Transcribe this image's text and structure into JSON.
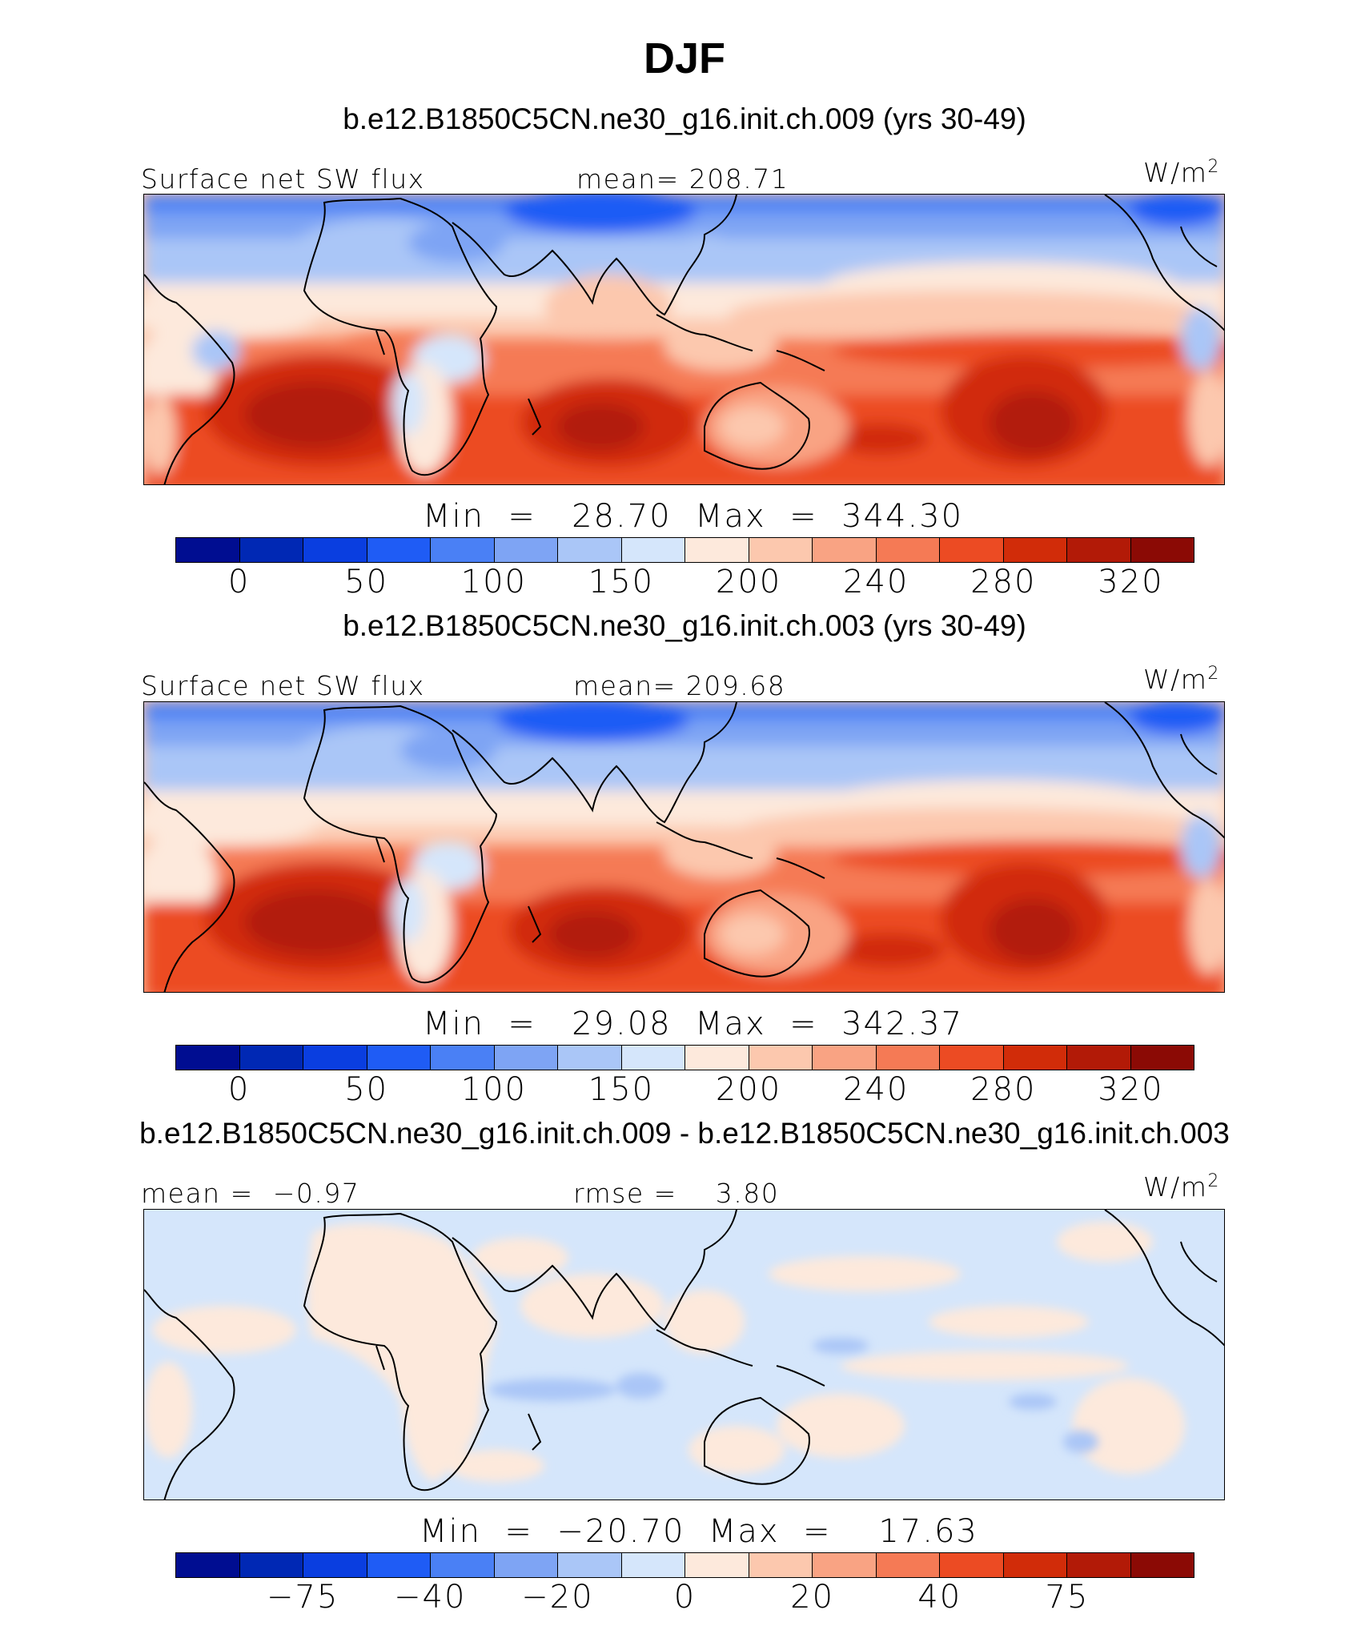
{
  "chart_data": [
    {
      "type": "heatmap",
      "title": "DJF",
      "subtitle": "b.e12.B1850C5CN.ne30_g16.init.ch.009 (yrs 30-49)",
      "variable": "Surface net SW flux",
      "mean_label": "mean=",
      "mean": "208.71",
      "units": "W/m",
      "units_exp": "2",
      "min_label": "Min",
      "min": "28.70",
      "max_label": "Max",
      "max": "344.30",
      "colorbar_ticks": [
        "0",
        "50",
        "100",
        "150",
        "200",
        "240",
        "280",
        "320"
      ],
      "colorbar_levels": [
        0,
        25,
        50,
        75,
        100,
        125,
        150,
        175,
        200,
        220,
        240,
        260,
        280,
        300,
        320
      ],
      "colors": [
        "#000d91",
        "#0028b4",
        "#0a3ee0",
        "#1f5cf5",
        "#4a80f5",
        "#7ea4f4",
        "#aac6f7",
        "#d5e6fb",
        "#fde9dc",
        "#fcc8ae",
        "#f9a383",
        "#f57a55",
        "#ec4b23",
        "#d12c09",
        "#b21a07",
        "#8b0a05"
      ]
    },
    {
      "type": "heatmap",
      "subtitle": "b.e12.B1850C5CN.ne30_g16.init.ch.003 (yrs 30-49)",
      "variable": "Surface net SW flux",
      "mean_label": "mean=",
      "mean": "209.68",
      "units": "W/m",
      "units_exp": "2",
      "min_label": "Min",
      "min": "29.08",
      "max_label": "Max",
      "max": "342.37",
      "colorbar_ticks": [
        "0",
        "50",
        "100",
        "150",
        "200",
        "240",
        "280",
        "320"
      ]
    },
    {
      "type": "heatmap",
      "subtitle": "b.e12.B1850C5CN.ne30_g16.init.ch.009 - b.e12.B1850C5CN.ne30_g16.init.ch.003",
      "mean_label": "mean =",
      "mean": "−0.97",
      "rmse_label": "rmse =",
      "rmse": "3.80",
      "units": "W/m",
      "units_exp": "2",
      "min_label": "Min",
      "min": "−20.70",
      "max_label": "Max",
      "max": "17.63",
      "colorbar_ticks": [
        "−75",
        "−40",
        "−20",
        "0",
        "20",
        "40",
        "75"
      ]
    }
  ]
}
